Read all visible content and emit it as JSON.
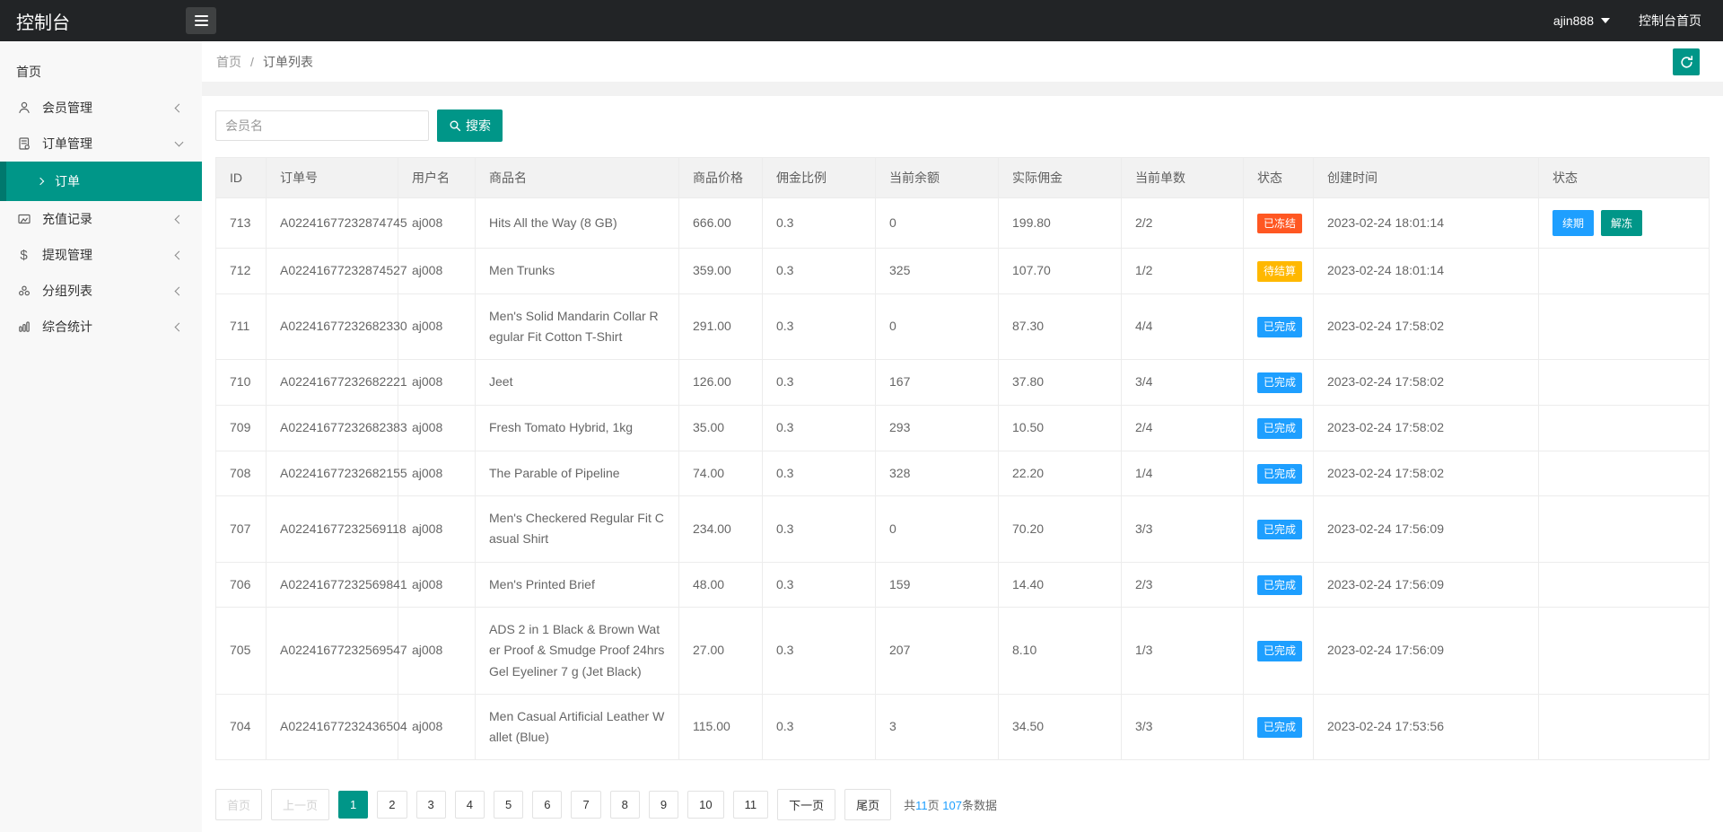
{
  "topbar": {
    "title": "控制台",
    "user": "ajin888",
    "home_link": "控制台首页"
  },
  "sidebar": {
    "items": [
      {
        "key": "home",
        "label": "首页",
        "icon": "",
        "chevron": ""
      },
      {
        "key": "member",
        "label": "会员管理",
        "icon": "user-icon",
        "chevron": "left"
      },
      {
        "key": "order",
        "label": "订单管理",
        "icon": "order-icon",
        "chevron": "down",
        "children": [
          {
            "key": "order-list",
            "label": "订单",
            "active": true
          }
        ]
      },
      {
        "key": "recharge",
        "label": "充值记录",
        "icon": "recharge-icon",
        "chevron": "left"
      },
      {
        "key": "withdraw",
        "label": "提现管理",
        "icon": "dollar-icon",
        "chevron": "left"
      },
      {
        "key": "group",
        "label": "分组列表",
        "icon": "group-icon",
        "chevron": "left"
      },
      {
        "key": "stats",
        "label": "综合统计",
        "icon": "stats-icon",
        "chevron": "left"
      }
    ]
  },
  "breadcrumb": {
    "items": [
      "首页",
      "订单列表"
    ],
    "separator": "/"
  },
  "search": {
    "placeholder": "会员名",
    "button": "搜索"
  },
  "table": {
    "headers": [
      "ID",
      "订单号",
      "用户名",
      "商品名",
      "商品价格",
      "佣金比例",
      "当前余额",
      "实际佣金",
      "当前单数",
      "状态",
      "创建时间",
      "状态"
    ],
    "rows": [
      {
        "id": "713",
        "order_no": "A02241677232874745",
        "user": "aj008",
        "product": "Hits All the Way (8 GB)",
        "price": "666.00",
        "ratio": "0.3",
        "balance": "0",
        "commission": "199.80",
        "count": "2/2",
        "status": "已冻结",
        "status_type": "frozen",
        "created": "2023-02-24 18:01:14",
        "actions": [
          {
            "key": "renew",
            "label": "续期"
          },
          {
            "key": "unfreeze",
            "label": "解冻"
          }
        ]
      },
      {
        "id": "712",
        "order_no": "A02241677232874527",
        "user": "aj008",
        "product": "Men Trunks",
        "price": "359.00",
        "ratio": "0.3",
        "balance": "325",
        "commission": "107.70",
        "count": "1/2",
        "status": "待结算",
        "status_type": "pending",
        "created": "2023-02-24 18:01:14",
        "actions": []
      },
      {
        "id": "711",
        "order_no": "A02241677232682330",
        "user": "aj008",
        "product": "Men's Solid Mandarin Collar Regular Fit Cotton T-Shirt",
        "price": "291.00",
        "ratio": "0.3",
        "balance": "0",
        "commission": "87.30",
        "count": "4/4",
        "status": "已完成",
        "status_type": "done",
        "created": "2023-02-24 17:58:02",
        "actions": []
      },
      {
        "id": "710",
        "order_no": "A02241677232682221",
        "user": "aj008",
        "product": "Jeet",
        "price": "126.00",
        "ratio": "0.3",
        "balance": "167",
        "commission": "37.80",
        "count": "3/4",
        "status": "已完成",
        "status_type": "done",
        "created": "2023-02-24 17:58:02",
        "actions": []
      },
      {
        "id": "709",
        "order_no": "A02241677232682383",
        "user": "aj008",
        "product": "Fresh Tomato Hybrid, 1kg",
        "price": "35.00",
        "ratio": "0.3",
        "balance": "293",
        "commission": "10.50",
        "count": "2/4",
        "status": "已完成",
        "status_type": "done",
        "created": "2023-02-24 17:58:02",
        "actions": []
      },
      {
        "id": "708",
        "order_no": "A02241677232682155",
        "user": "aj008",
        "product": "The Parable of Pipeline",
        "price": "74.00",
        "ratio": "0.3",
        "balance": "328",
        "commission": "22.20",
        "count": "1/4",
        "status": "已完成",
        "status_type": "done",
        "created": "2023-02-24 17:58:02",
        "actions": []
      },
      {
        "id": "707",
        "order_no": "A02241677232569118",
        "user": "aj008",
        "product": "Men's Checkered Regular Fit Casual Shirt",
        "price": "234.00",
        "ratio": "0.3",
        "balance": "0",
        "commission": "70.20",
        "count": "3/3",
        "status": "已完成",
        "status_type": "done",
        "created": "2023-02-24 17:56:09",
        "actions": []
      },
      {
        "id": "706",
        "order_no": "A02241677232569841",
        "user": "aj008",
        "product": "Men's Printed Brief",
        "price": "48.00",
        "ratio": "0.3",
        "balance": "159",
        "commission": "14.40",
        "count": "2/3",
        "status": "已完成",
        "status_type": "done",
        "created": "2023-02-24 17:56:09",
        "actions": []
      },
      {
        "id": "705",
        "order_no": "A02241677232569547",
        "user": "aj008",
        "product": "ADS 2 in 1 Black & Brown Water Proof & Smudge Proof 24hrs Gel Eyeliner 7 g (Jet Black)",
        "price": "27.00",
        "ratio": "0.3",
        "balance": "207",
        "commission": "8.10",
        "count": "1/3",
        "status": "已完成",
        "status_type": "done",
        "created": "2023-02-24 17:56:09",
        "actions": []
      },
      {
        "id": "704",
        "order_no": "A02241677232436504",
        "user": "aj008",
        "product": "Men Casual Artificial Leather Wallet (Blue)",
        "price": "115.00",
        "ratio": "0.3",
        "balance": "3",
        "commission": "34.50",
        "count": "3/3",
        "status": "已完成",
        "status_type": "done",
        "created": "2023-02-24 17:53:56",
        "actions": []
      }
    ]
  },
  "pagination": {
    "first": "首页",
    "prev": "上一页",
    "pages": [
      "1",
      "2",
      "3",
      "4",
      "5",
      "6",
      "7",
      "8",
      "9",
      "10",
      "11"
    ],
    "active": "1",
    "next": "下一页",
    "last": "尾页",
    "summary": {
      "prefix": "共",
      "pages_count": "11",
      "middle": "页 ",
      "records": "107",
      "suffix": "条数据"
    }
  },
  "colors": {
    "accent": "#009688",
    "link_blue": "#1E9FFF",
    "status": {
      "frozen": "#FF5722",
      "pending": "#FFB800",
      "done": "#1E9FFF"
    },
    "actions": {
      "renew": "#1E9FFF",
      "unfreeze": "#009688"
    }
  }
}
